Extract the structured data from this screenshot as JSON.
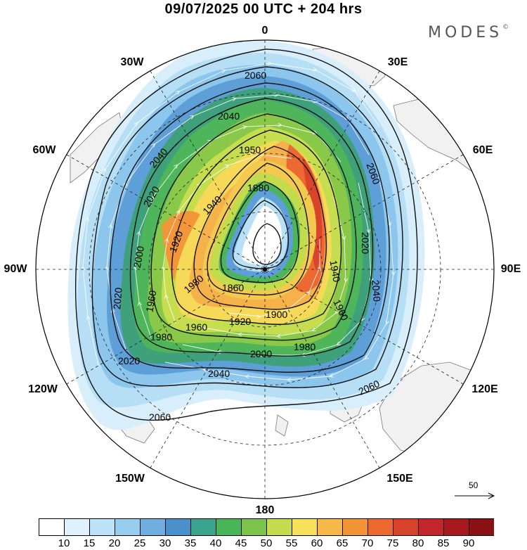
{
  "title": "09/07/2025  00 UTC  + 204 hrs",
  "brand": {
    "name": "MODES",
    "mark": "©"
  },
  "map": {
    "projection": "polar stereographic (south)",
    "longitude_labels": {
      "top": "0",
      "tr": "30E",
      "rt": "60E",
      "right": "90E",
      "rb": "120E",
      "br": "150E",
      "bottom": "180",
      "bl": "150W",
      "lb": "120W",
      "left": "90W",
      "lt": "60W",
      "tl": "30W"
    },
    "contour_labels": [
      "2060",
      "2040",
      "1950",
      "2040",
      "2020",
      "1940",
      "1880",
      "2060",
      "2020",
      "1920",
      "2000",
      "1860",
      "1940",
      "2020",
      "1900",
      "1960",
      "1980",
      "1980",
      "1920",
      "1960",
      "2040",
      "1960",
      "1980",
      "2000",
      "2020",
      "2040",
      "2060",
      "2060"
    ],
    "reference_vector": "50",
    "colors": {
      "land": "#f2f2f2",
      "coast": "#777777",
      "contour": "#111111",
      "arrows": "#ffffff"
    }
  },
  "colorbar": {
    "ticks": [
      "10",
      "15",
      "20",
      "25",
      "30",
      "35",
      "40",
      "45",
      "50",
      "55",
      "60",
      "65",
      "70",
      "75",
      "80",
      "85",
      "90"
    ],
    "colors": [
      "#ffffff",
      "#def1fc",
      "#bde3f8",
      "#97cdef",
      "#6faede",
      "#4a91cc",
      "#39a38e",
      "#49b559",
      "#7bc34b",
      "#c4dc4d",
      "#f7e15a",
      "#f7b84a",
      "#f39437",
      "#ec6a30",
      "#d8412a",
      "#c2262a",
      "#a61a1d",
      "#8a1214"
    ]
  }
}
